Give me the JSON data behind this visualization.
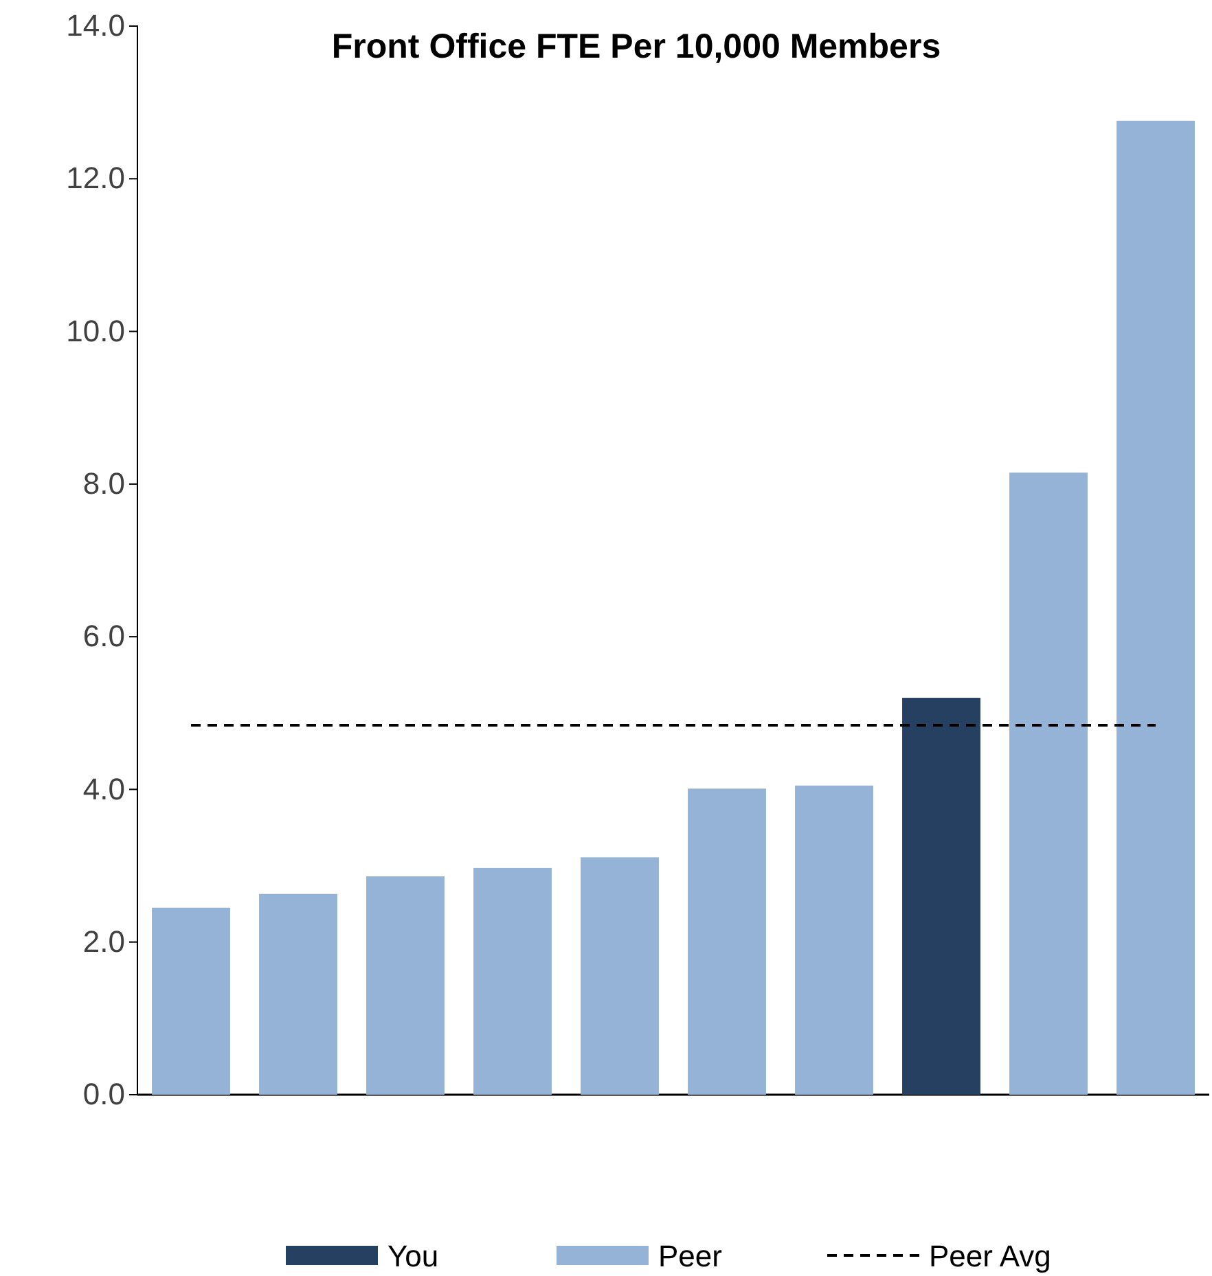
{
  "chart_data": {
    "type": "bar",
    "title": "Front Office FTE Per 10,000 Members",
    "categories": [
      null,
      null,
      null,
      null,
      null,
      null,
      null,
      null,
      null,
      null
    ],
    "series": [
      {
        "name": "You",
        "color": "#264061",
        "values": [
          null,
          null,
          null,
          null,
          null,
          null,
          null,
          5.2,
          null,
          null
        ]
      },
      {
        "name": "Peer",
        "color": "#95b3d7",
        "values": [
          2.45,
          2.63,
          2.86,
          2.97,
          3.11,
          4.01,
          4.05,
          null,
          8.15,
          12.76
        ]
      }
    ],
    "ylim": [
      0,
      14
    ],
    "yticks": [
      {
        "value": 0,
        "label": "0.0"
      },
      {
        "value": 2,
        "label": "2.0"
      },
      {
        "value": 4,
        "label": "4.0"
      },
      {
        "value": 6,
        "label": "6.0"
      },
      {
        "value": 8,
        "label": "8.0"
      },
      {
        "value": 10,
        "label": "10.0"
      },
      {
        "value": 12,
        "label": "12.0"
      },
      {
        "value": 14,
        "label": "14.0"
      }
    ],
    "ref_lines": [
      {
        "axis": "y",
        "value": 4.84,
        "label": "Peer Avg",
        "color": "#000000",
        "line_style": "dashed"
      }
    ],
    "grid": false,
    "legend": "bottom"
  }
}
